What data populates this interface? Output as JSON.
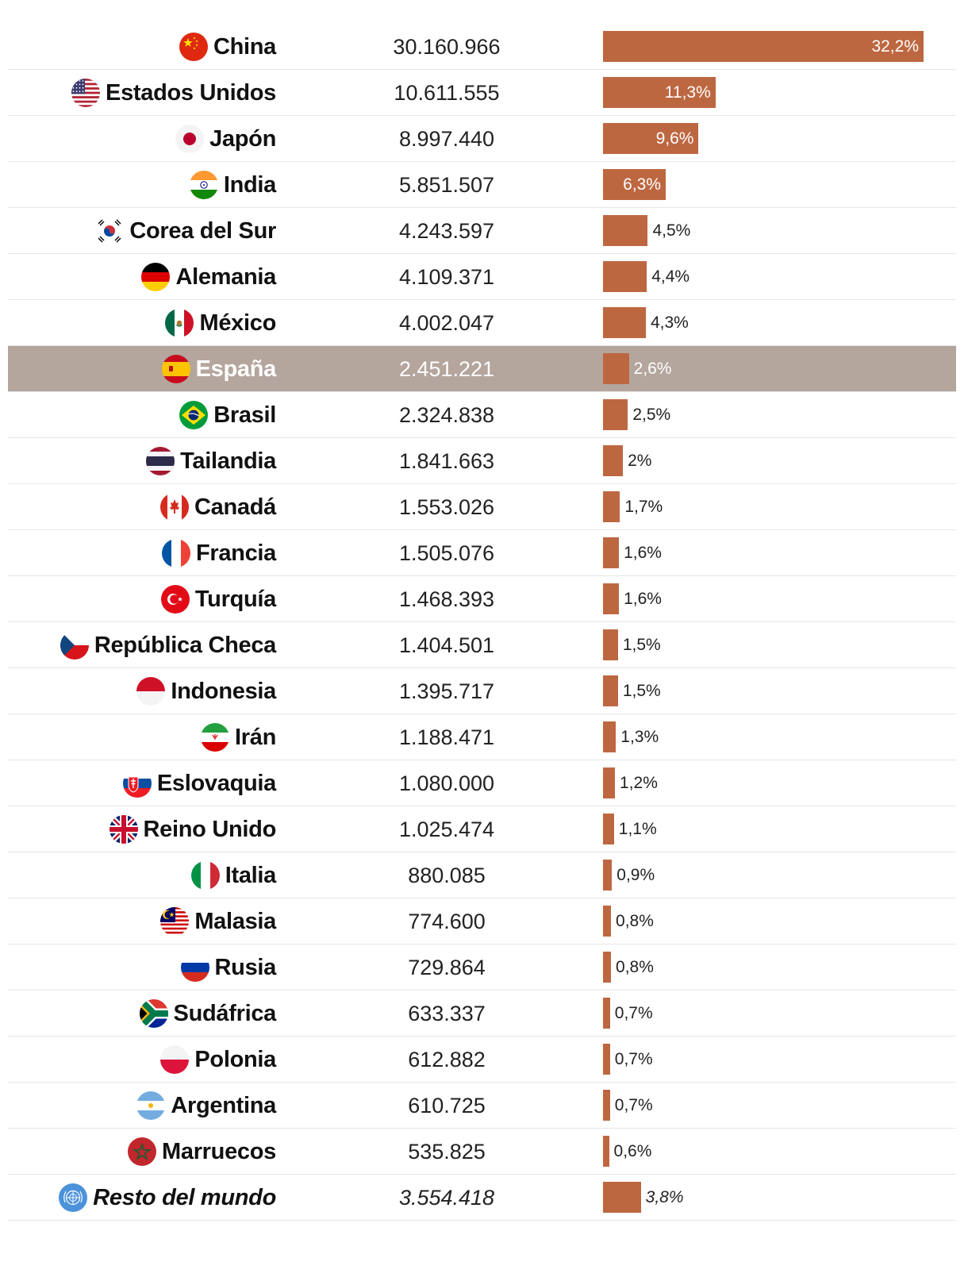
{
  "chart_data": {
    "type": "table",
    "highlight": "España",
    "bar_color": "#bd6741",
    "highlight_color": "#b4a59d",
    "max_percent": 32.2,
    "rows": [
      {
        "country": "China",
        "flag": "china-flag-icon",
        "value": "30.160.966",
        "percent": 32.2,
        "percent_label": "32,2%"
      },
      {
        "country": "Estados Unidos",
        "flag": "usa-flag-icon",
        "value": "10.611.555",
        "percent": 11.3,
        "percent_label": "11,3%"
      },
      {
        "country": "Japón",
        "flag": "japan-flag-icon",
        "value": "8.997.440",
        "percent": 9.6,
        "percent_label": "9,6%"
      },
      {
        "country": "India",
        "flag": "india-flag-icon",
        "value": "5.851.507",
        "percent": 6.3,
        "percent_label": "6,3%"
      },
      {
        "country": "Corea del Sur",
        "flag": "south-korea-flag-icon",
        "value": "4.243.597",
        "percent": 4.5,
        "percent_label": "4,5%"
      },
      {
        "country": "Alemania",
        "flag": "germany-flag-icon",
        "value": "4.109.371",
        "percent": 4.4,
        "percent_label": "4,4%"
      },
      {
        "country": "México",
        "flag": "mexico-flag-icon",
        "value": "4.002.047",
        "percent": 4.3,
        "percent_label": "4,3%"
      },
      {
        "country": "España",
        "flag": "spain-flag-icon",
        "value": "2.451.221",
        "percent": 2.6,
        "percent_label": "2,6%"
      },
      {
        "country": "Brasil",
        "flag": "brazil-flag-icon",
        "value": "2.324.838",
        "percent": 2.5,
        "percent_label": "2,5%"
      },
      {
        "country": "Tailandia",
        "flag": "thailand-flag-icon",
        "value": "1.841.663",
        "percent": 2.0,
        "percent_label": "2%"
      },
      {
        "country": "Canadá",
        "flag": "canada-flag-icon",
        "value": "1.553.026",
        "percent": 1.7,
        "percent_label": "1,7%"
      },
      {
        "country": "Francia",
        "flag": "france-flag-icon",
        "value": "1.505.076",
        "percent": 1.6,
        "percent_label": "1,6%"
      },
      {
        "country": "Turquía",
        "flag": "turkey-flag-icon",
        "value": "1.468.393",
        "percent": 1.6,
        "percent_label": "1,6%"
      },
      {
        "country": "República Checa",
        "flag": "czech-flag-icon",
        "value": "1.404.501",
        "percent": 1.5,
        "percent_label": "1,5%"
      },
      {
        "country": "Indonesia",
        "flag": "indonesia-flag-icon",
        "value": "1.395.717",
        "percent": 1.5,
        "percent_label": "1,5%"
      },
      {
        "country": "Irán",
        "flag": "iran-flag-icon",
        "value": "1.188.471",
        "percent": 1.3,
        "percent_label": "1,3%"
      },
      {
        "country": "Eslovaquia",
        "flag": "slovakia-flag-icon",
        "value": "1.080.000",
        "percent": 1.2,
        "percent_label": "1,2%"
      },
      {
        "country": "Reino Unido",
        "flag": "uk-flag-icon",
        "value": "1.025.474",
        "percent": 1.1,
        "percent_label": "1,1%"
      },
      {
        "country": "Italia",
        "flag": "italy-flag-icon",
        "value": "880.085",
        "percent": 0.9,
        "percent_label": "0,9%"
      },
      {
        "country": "Malasia",
        "flag": "malaysia-flag-icon",
        "value": "774.600",
        "percent": 0.8,
        "percent_label": "0,8%"
      },
      {
        "country": "Rusia",
        "flag": "russia-flag-icon",
        "value": "729.864",
        "percent": 0.8,
        "percent_label": "0,8%"
      },
      {
        "country": "Sudáfrica",
        "flag": "south-africa-flag-icon",
        "value": "633.337",
        "percent": 0.7,
        "percent_label": "0,7%"
      },
      {
        "country": "Polonia",
        "flag": "poland-flag-icon",
        "value": "612.882",
        "percent": 0.7,
        "percent_label": "0,7%"
      },
      {
        "country": "Argentina",
        "flag": "argentina-flag-icon",
        "value": "610.725",
        "percent": 0.7,
        "percent_label": "0,7%"
      },
      {
        "country": "Marruecos",
        "flag": "morocco-flag-icon",
        "value": "535.825",
        "percent": 0.6,
        "percent_label": "0,6%"
      },
      {
        "country": "Resto del mundo",
        "flag": "un-flag-icon",
        "value": "3.554.418",
        "percent": 3.8,
        "percent_label": "3,8%",
        "italic": true
      }
    ]
  }
}
